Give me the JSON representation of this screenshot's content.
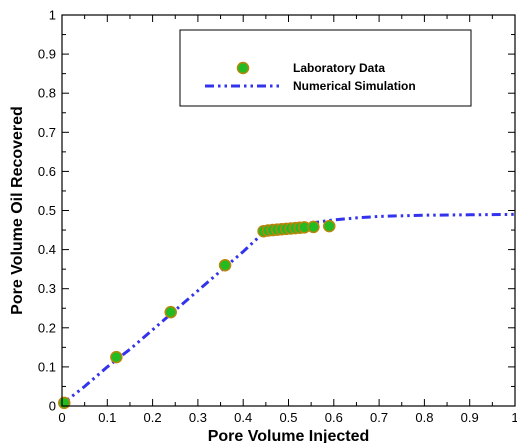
{
  "chart_data": {
    "type": "scatter",
    "xlabel": "Pore Volume Injected",
    "ylabel": "Pore Volume Oil Recovered",
    "xlim": [
      0,
      1
    ],
    "ylim": [
      0,
      1
    ],
    "x_ticks": [
      "0",
      "0.1",
      "0.2",
      "0.3",
      "0.4",
      "0.5",
      "0.6",
      "0.7",
      "0.8",
      "0.9",
      "1"
    ],
    "y_ticks": [
      "0",
      "0.1",
      "0.2",
      "0.3",
      "0.4",
      "0.5",
      "0.6",
      "0.7",
      "0.8",
      "0.9",
      "1"
    ],
    "grid": false,
    "legend_placement": "top-right",
    "series": [
      {
        "name": "Laboratory Data",
        "kind": "markers",
        "marker": "circle",
        "fill_color": "#22bb22",
        "edge_color": "#b8860b",
        "x": [
          0.005,
          0.12,
          0.24,
          0.36,
          0.445,
          0.455,
          0.465,
          0.475,
          0.485,
          0.495,
          0.505,
          0.515,
          0.525,
          0.535,
          0.555,
          0.59
        ],
        "y": [
          0.008,
          0.125,
          0.24,
          0.36,
          0.447,
          0.449,
          0.45,
          0.451,
          0.452,
          0.453,
          0.454,
          0.455,
          0.456,
          0.457,
          0.458,
          0.46
        ]
      },
      {
        "name": "Numerical Simulation",
        "kind": "line",
        "line_style": "dash-dot-dot",
        "color": "#3333ee",
        "x": [
          0,
          0.05,
          0.1,
          0.15,
          0.2,
          0.25,
          0.3,
          0.35,
          0.4,
          0.44,
          0.46,
          0.5,
          0.55,
          0.6,
          0.65,
          0.7,
          0.8,
          0.9,
          1.0
        ],
        "y": [
          0.005,
          0.05,
          0.1,
          0.145,
          0.195,
          0.245,
          0.295,
          0.345,
          0.395,
          0.438,
          0.449,
          0.458,
          0.468,
          0.476,
          0.481,
          0.485,
          0.488,
          0.489,
          0.49
        ]
      }
    ]
  }
}
